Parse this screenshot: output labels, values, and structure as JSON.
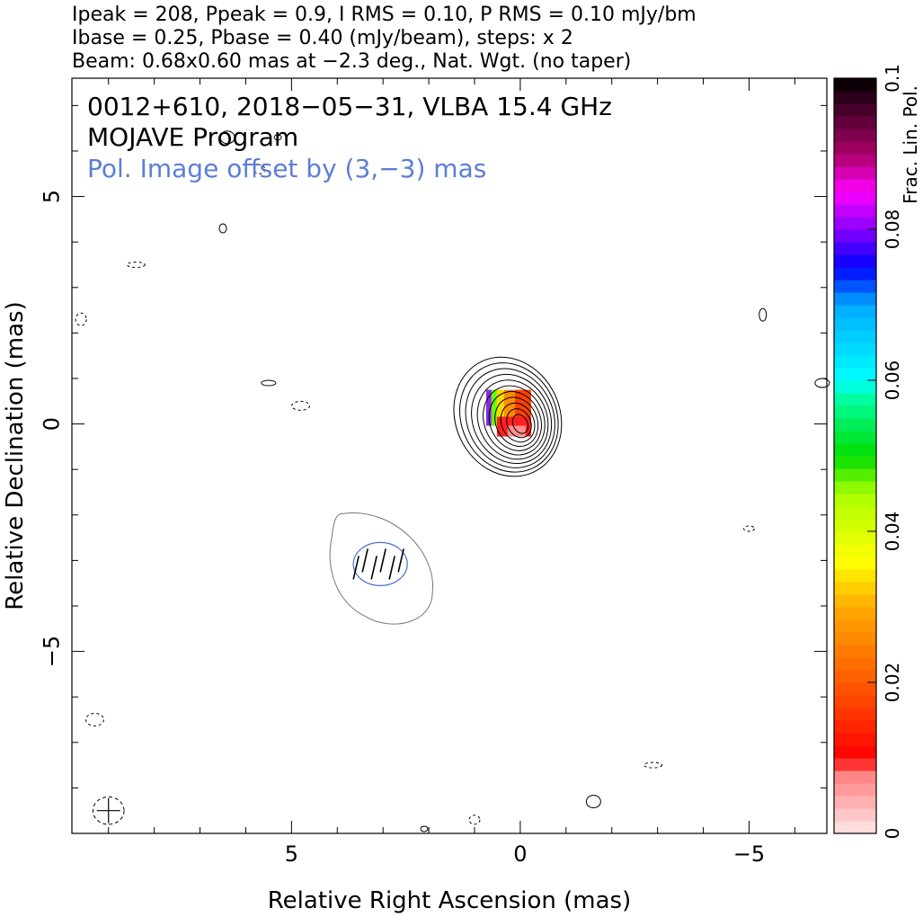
{
  "header": {
    "line1": "Ipeak = 208, Ppeak = 0.9, I RMS = 0.10, P RMS = 0.10 mJy/bm",
    "line2": "Ibase = 0.25, Pbase = 0.40 (mJy/beam), steps: x 2",
    "line3": "Beam: 0.68x0.60 mas at −2.3 deg., Nat. Wgt. (no taper)"
  },
  "panel": {
    "source_line": "0012+610, 2018−05−31, VLBA 15.4 GHz",
    "program_line": "MOJAVE Program",
    "pol_offset_line": "Pol. Image offset by (3,−3) mas"
  },
  "colorbar": {
    "label": "Frac. Lin. Pol.",
    "min": 0,
    "max": 0.1,
    "ticks": [
      "0",
      "0.02",
      "0.04",
      "0.06",
      "0.08",
      "0.1"
    ]
  },
  "chart_data": {
    "type": "contour",
    "xlabel": "Relative Right Ascension (mas)",
    "ylabel": "Relative Declination (mas)",
    "xlim": [
      9.8,
      -6.7
    ],
    "ylim": [
      -9.0,
      7.6
    ],
    "x_ticks": [
      {
        "value": 5,
        "label": "5"
      },
      {
        "value": 0,
        "label": "0"
      },
      {
        "value": -5,
        "label": "−5"
      }
    ],
    "y_ticks": [
      {
        "value": 5,
        "label": "5"
      },
      {
        "value": 0,
        "label": "0"
      },
      {
        "value": -5,
        "label": "−5"
      }
    ],
    "core": {
      "ra": 0.0,
      "dec": 0.0,
      "levels": 11
    },
    "pol_component": {
      "ra": 3.0,
      "dec": -3.0
    },
    "beam": {
      "ra": 9.0,
      "dec": -8.5
    },
    "noise_contours": [
      {
        "ra": 5.3,
        "dec": 6.3
      },
      {
        "ra": 5.7,
        "dec": 5.6
      },
      {
        "ra": 6.4,
        "dec": 6.3
      },
      {
        "ra": 8.4,
        "dec": 3.5
      },
      {
        "ra": 6.5,
        "dec": 4.3
      },
      {
        "ra": 9.6,
        "dec": 2.3
      },
      {
        "ra": 5.5,
        "dec": 0.9
      },
      {
        "ra": 4.8,
        "dec": 0.4
      },
      {
        "ra": -5.3,
        "dec": 2.4
      },
      {
        "ra": -5.0,
        "dec": -2.3
      },
      {
        "ra": -6.6,
        "dec": 0.9
      },
      {
        "ra": 9.3,
        "dec": -6.5
      },
      {
        "ra": 2.1,
        "dec": -8.9
      },
      {
        "ra": 1.0,
        "dec": -8.7
      },
      {
        "ra": -1.6,
        "dec": -8.3
      },
      {
        "ra": -2.9,
        "dec": -7.5
      }
    ]
  }
}
